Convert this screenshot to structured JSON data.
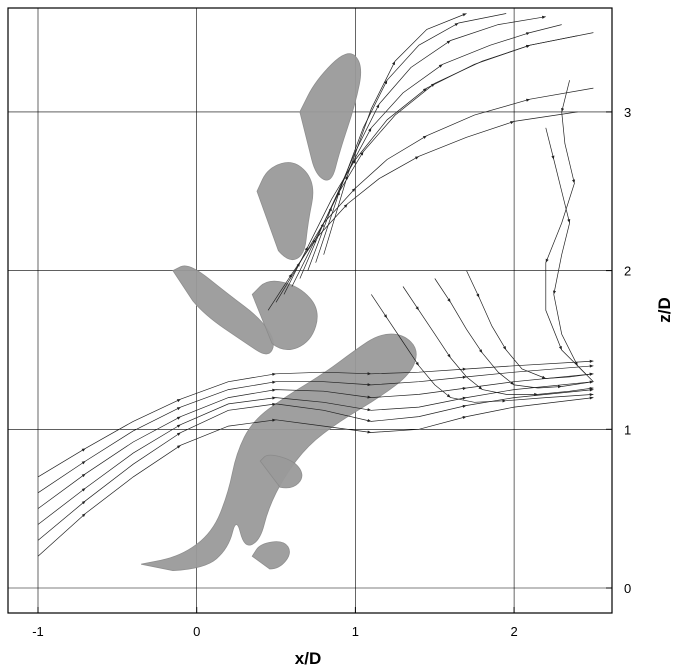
{
  "chart_data": {
    "type": "scatter",
    "title": "",
    "xlabel": "x/D",
    "ylabel": "z/D",
    "xlim": [
      -1.15,
      2.65
    ],
    "ylim": [
      -0.2,
      3.7
    ],
    "xticks": [
      -1,
      0,
      1,
      2
    ],
    "yticks": [
      0,
      1,
      2,
      3
    ],
    "xtick_labels": [
      "-1",
      "0",
      "1",
      "2"
    ],
    "ytick_labels": [
      "0",
      "1",
      "2",
      "3"
    ],
    "grid": true,
    "ytick_position": "right",
    "series": [
      {
        "kind": "streamlines",
        "color": "#222222",
        "lines": [
          {
            "x": [
              -1.0,
              -0.7,
              -0.4,
              -0.1,
              0.2,
              0.5,
              0.8,
              1.1,
              1.4,
              1.7,
              2.0,
              2.5
            ],
            "y": [
              0.3,
              0.55,
              0.78,
              0.98,
              1.12,
              1.16,
              1.12,
              1.05,
              1.08,
              1.15,
              1.2,
              1.25
            ]
          },
          {
            "x": [
              -1.0,
              -0.7,
              -0.4,
              -0.1,
              0.2,
              0.5,
              0.8,
              1.1,
              1.4,
              1.7,
              2.0,
              2.5
            ],
            "y": [
              0.4,
              0.63,
              0.85,
              1.03,
              1.16,
              1.2,
              1.17,
              1.12,
              1.14,
              1.2,
              1.25,
              1.3
            ]
          },
          {
            "x": [
              -1.0,
              -0.7,
              -0.4,
              -0.1,
              0.2,
              0.5,
              0.8,
              1.1,
              1.4,
              1.7,
              2.0,
              2.5
            ],
            "y": [
              0.5,
              0.72,
              0.92,
              1.08,
              1.2,
              1.25,
              1.24,
              1.2,
              1.22,
              1.26,
              1.3,
              1.35
            ]
          },
          {
            "x": [
              -1.0,
              -0.7,
              -0.4,
              -0.1,
              0.2,
              0.5,
              0.8,
              1.1,
              1.4,
              1.7,
              2.0,
              2.5
            ],
            "y": [
              0.6,
              0.8,
              0.99,
              1.14,
              1.25,
              1.3,
              1.3,
              1.28,
              1.3,
              1.33,
              1.36,
              1.4
            ]
          },
          {
            "x": [
              -1.0,
              -0.7,
              -0.4,
              -0.1,
              0.2,
              0.5,
              0.8,
              1.1,
              1.4,
              1.7,
              2.0,
              2.5
            ],
            "y": [
              0.7,
              0.88,
              1.05,
              1.19,
              1.3,
              1.35,
              1.36,
              1.35,
              1.36,
              1.38,
              1.4,
              1.43
            ]
          },
          {
            "x": [
              -1.0,
              -0.7,
              -0.4,
              -0.1,
              0.2,
              0.5,
              0.8,
              1.1,
              1.4,
              1.7,
              2.0,
              2.5
            ],
            "y": [
              0.2,
              0.47,
              0.7,
              0.9,
              1.02,
              1.06,
              1.02,
              0.98,
              1.0,
              1.08,
              1.14,
              1.2
            ]
          },
          {
            "x": [
              0.55,
              0.7,
              0.85,
              1.0,
              1.2,
              1.45,
              1.75,
              2.1,
              2.5
            ],
            "y": [
              1.85,
              2.15,
              2.45,
              2.7,
              2.95,
              3.15,
              3.3,
              3.42,
              3.5
            ]
          },
          {
            "x": [
              0.6,
              0.75,
              0.9,
              1.05,
              1.25,
              1.5,
              1.8,
              2.1,
              2.4
            ],
            "y": [
              1.9,
              2.2,
              2.5,
              2.75,
              2.98,
              3.18,
              3.32,
              3.42,
              3.48
            ]
          },
          {
            "x": [
              0.65,
              0.8,
              0.95,
              1.1,
              1.3,
              1.55,
              1.85,
              2.1,
              2.3
            ],
            "y": [
              1.95,
              2.3,
              2.62,
              2.9,
              3.12,
              3.3,
              3.42,
              3.5,
              3.55
            ]
          },
          {
            "x": [
              0.7,
              0.85,
              1.0,
              1.15,
              1.35,
              1.6,
              1.9,
              2.2
            ],
            "y": [
              2.0,
              2.4,
              2.75,
              3.05,
              3.28,
              3.45,
              3.55,
              3.6
            ]
          },
          {
            "x": [
              0.75,
              0.9,
              1.05,
              1.2,
              1.4,
              1.65,
              1.95
            ],
            "y": [
              2.05,
              2.5,
              2.9,
              3.2,
              3.42,
              3.56,
              3.62
            ]
          },
          {
            "x": [
              0.8,
              0.95,
              1.1,
              1.25,
              1.45,
              1.7
            ],
            "y": [
              2.1,
              2.6,
              3.02,
              3.32,
              3.52,
              3.62
            ]
          },
          {
            "x": [
              0.5,
              0.65,
              0.8,
              1.0,
              1.2,
              1.45,
              1.75,
              2.1,
              2.5
            ],
            "y": [
              1.8,
              2.05,
              2.3,
              2.52,
              2.7,
              2.85,
              2.98,
              3.08,
              3.15
            ]
          },
          {
            "x": [
              0.45,
              0.6,
              0.75,
              0.95,
              1.15,
              1.4,
              1.7,
              2.0,
              2.4
            ],
            "y": [
              1.75,
              1.98,
              2.2,
              2.42,
              2.58,
              2.72,
              2.84,
              2.94,
              3.0
            ]
          },
          {
            "x": [
              2.2,
              2.25,
              2.3,
              2.35,
              2.3,
              2.25,
              2.3,
              2.4,
              2.5
            ],
            "y": [
              2.9,
              2.7,
              2.5,
              2.3,
              2.1,
              1.85,
              1.6,
              1.4,
              1.3
            ]
          },
          {
            "x": [
              2.35,
              2.3,
              2.32,
              2.38,
              2.3,
              2.2,
              2.2,
              2.3,
              2.45
            ],
            "y": [
              3.2,
              3.0,
              2.8,
              2.55,
              2.3,
              2.05,
              1.75,
              1.5,
              1.35
            ]
          },
          {
            "x": [
              1.1,
              1.2,
              1.3,
              1.4,
              1.5,
              1.6,
              1.75,
              1.95,
              2.2,
              2.5
            ],
            "y": [
              1.85,
              1.7,
              1.55,
              1.4,
              1.28,
              1.2,
              1.17,
              1.18,
              1.2,
              1.22
            ]
          },
          {
            "x": [
              1.3,
              1.4,
              1.5,
              1.6,
              1.7,
              1.8,
              1.95,
              2.15,
              2.35,
              2.5
            ],
            "y": [
              1.9,
              1.75,
              1.6,
              1.45,
              1.33,
              1.25,
              1.22,
              1.22,
              1.24,
              1.26
            ]
          },
          {
            "x": [
              1.5,
              1.6,
              1.7,
              1.8,
              1.9,
              2.0,
              2.15,
              2.3,
              2.5
            ],
            "y": [
              1.95,
              1.8,
              1.63,
              1.48,
              1.36,
              1.28,
              1.26,
              1.27,
              1.3
            ]
          },
          {
            "x": [
              1.7,
              1.78,
              1.86,
              1.95,
              2.05,
              2.2,
              2.35,
              2.5
            ],
            "y": [
              2.0,
              1.83,
              1.65,
              1.5,
              1.38,
              1.32,
              1.33,
              1.35
            ]
          }
        ]
      }
    ],
    "isosurfaces": [
      {
        "kind": "main-loop",
        "points": [
          [
            -0.35,
            0.15
          ],
          [
            -0.1,
            0.2
          ],
          [
            0.1,
            0.35
          ],
          [
            0.2,
            0.6
          ],
          [
            0.25,
            0.85
          ],
          [
            0.35,
            1.05
          ],
          [
            0.55,
            1.2
          ],
          [
            0.8,
            1.35
          ],
          [
            1.0,
            1.5
          ],
          [
            1.15,
            1.6
          ],
          [
            1.3,
            1.6
          ],
          [
            1.4,
            1.5
          ],
          [
            1.35,
            1.35
          ],
          [
            1.15,
            1.2
          ],
          [
            0.9,
            1.05
          ],
          [
            0.7,
            0.9
          ],
          [
            0.55,
            0.7
          ],
          [
            0.45,
            0.5
          ],
          [
            0.4,
            0.3
          ],
          [
            0.3,
            0.25
          ],
          [
            0.25,
            0.45
          ],
          [
            0.2,
            0.25
          ],
          [
            0.05,
            0.12
          ],
          [
            -0.35,
            0.1
          ]
        ]
      },
      {
        "kind": "upper-tube-1",
        "points": [
          [
            0.65,
            3.0
          ],
          [
            0.75,
            3.2
          ],
          [
            0.95,
            3.4
          ],
          [
            1.05,
            3.3
          ],
          [
            1.0,
            3.05
          ],
          [
            0.9,
            2.75
          ],
          [
            0.85,
            2.55
          ],
          [
            0.75,
            2.6
          ],
          [
            0.7,
            2.8
          ]
        ]
      },
      {
        "kind": "upper-tube-2",
        "points": [
          [
            0.38,
            2.5
          ],
          [
            0.45,
            2.65
          ],
          [
            0.62,
            2.7
          ],
          [
            0.75,
            2.55
          ],
          [
            0.7,
            2.3
          ],
          [
            0.68,
            2.1
          ],
          [
            0.58,
            2.05
          ],
          [
            0.45,
            2.2
          ]
        ]
      },
      {
        "kind": "upper-tube-3",
        "points": [
          [
            -0.15,
            2.0
          ],
          [
            -0.05,
            2.05
          ],
          [
            0.2,
            1.85
          ],
          [
            0.4,
            1.7
          ],
          [
            0.5,
            1.55
          ],
          [
            0.45,
            1.45
          ],
          [
            0.3,
            1.55
          ],
          [
            0.05,
            1.72
          ],
          [
            -0.1,
            1.9
          ]
        ]
      },
      {
        "kind": "upper-tube-4",
        "points": [
          [
            0.35,
            1.85
          ],
          [
            0.45,
            1.95
          ],
          [
            0.65,
            1.9
          ],
          [
            0.78,
            1.75
          ],
          [
            0.72,
            1.55
          ],
          [
            0.55,
            1.48
          ],
          [
            0.4,
            1.6
          ]
        ]
      },
      {
        "kind": "blob-1",
        "points": [
          [
            0.4,
            0.8
          ],
          [
            0.45,
            0.85
          ],
          [
            0.62,
            0.8
          ],
          [
            0.68,
            0.7
          ],
          [
            0.6,
            0.62
          ],
          [
            0.45,
            0.65
          ]
        ]
      },
      {
        "kind": "blob-2",
        "points": [
          [
            0.35,
            0.2
          ],
          [
            0.4,
            0.28
          ],
          [
            0.55,
            0.3
          ],
          [
            0.6,
            0.22
          ],
          [
            0.52,
            0.12
          ],
          [
            0.4,
            0.12
          ]
        ]
      }
    ]
  }
}
